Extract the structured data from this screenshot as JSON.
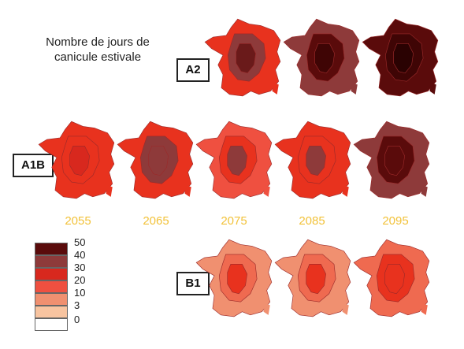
{
  "title": "Nombre de jours de canicule estivale",
  "scenarios": {
    "a2": "A2",
    "a1b": "A1B",
    "b1": "B1"
  },
  "years": [
    "2055",
    "2065",
    "2075",
    "2085",
    "2095"
  ],
  "legend": {
    "ticks": [
      "50",
      "40",
      "30",
      "20",
      "10",
      "3",
      "0"
    ],
    "bins": [
      {
        "range": "40-50",
        "color": "#5a0b0b"
      },
      {
        "range": "30-40",
        "color": "#8e3a3a"
      },
      {
        "range": "20-30",
        "color": "#d8281e"
      },
      {
        "range": "10-20",
        "color": "#ef5040"
      },
      {
        "range": "3-10",
        "color": "#f09070"
      },
      {
        "range": "0-3",
        "color": "#f8c4a0"
      },
      {
        "range": "0",
        "color": "#ffffff"
      }
    ]
  },
  "maps": {
    "A2": [
      {
        "year": "2075",
        "base": "#e8321e",
        "mid": "#8e3a3a",
        "core": "#6a1a1a"
      },
      {
        "year": "2085",
        "base": "#8e3a3a",
        "mid": "#5a0b0b",
        "core": "#3f0505"
      },
      {
        "year": "2095",
        "base": "#5a0b0b",
        "mid": "#3f0505",
        "core": "#2a0202"
      }
    ],
    "A1B": [
      {
        "year": "2055",
        "base": "#e8321e",
        "mid": "#e8321e",
        "core": "#d8281e"
      },
      {
        "year": "2065",
        "base": "#e8321e",
        "mid": "#8e3a3a",
        "core": "#8e3a3a"
      },
      {
        "year": "2075",
        "base": "#ef5040",
        "mid": "#e8321e",
        "core": "#8e3a3a"
      },
      {
        "year": "2085",
        "base": "#e8321e",
        "mid": "#e8321e",
        "core": "#8e3a3a"
      },
      {
        "year": "2095",
        "base": "#8e3a3a",
        "mid": "#5a0b0b",
        "core": "#5a0b0b"
      }
    ],
    "B1": [
      {
        "year": "2075",
        "base": "#f09070",
        "mid": "#ef6a50",
        "core": "#e8321e"
      },
      {
        "year": "2085",
        "base": "#f09070",
        "mid": "#ef6a50",
        "core": "#e8321e"
      },
      {
        "year": "2095",
        "base": "#ef6a50",
        "mid": "#e8321e",
        "core": "#e8321e"
      }
    ]
  }
}
